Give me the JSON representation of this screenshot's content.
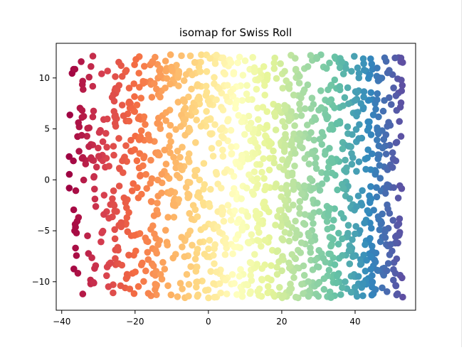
{
  "chart_data": {
    "type": "scatter",
    "title": "isomap for Swiss Roll",
    "xlabel": "",
    "ylabel": "",
    "xlim": [
      -41.5,
      56.5
    ],
    "ylim": [
      -12.8,
      13.4
    ],
    "xticks": [
      -40,
      -20,
      0,
      20,
      40
    ],
    "xtick_labels": [
      "−40",
      "−20",
      "0",
      "20",
      "40"
    ],
    "yticks": [
      -10,
      -5,
      0,
      5,
      10
    ],
    "ytick_labels": [
      "−10",
      "−5",
      "0",
      "5",
      "10"
    ],
    "grid": false,
    "legend": "none",
    "colormap": "Spectral",
    "color_encodes": "position along the unrolled manifold (left = red, right = blue)",
    "x_range_of_points": [
      -38,
      53
    ],
    "y_range_of_points": [
      -11.6,
      12.3
    ],
    "point_count": 1500,
    "colormap_stops": [
      "#9e0142",
      "#d53e4f",
      "#f46d43",
      "#fdae61",
      "#fee08b",
      "#ffffbf",
      "#e6f598",
      "#abdda4",
      "#66c2a5",
      "#3288bd",
      "#5e4fa2"
    ]
  }
}
